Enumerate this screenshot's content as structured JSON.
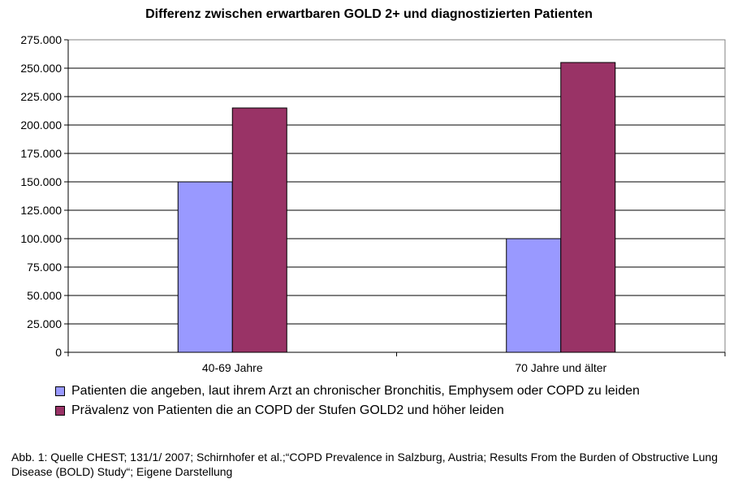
{
  "chart_data": {
    "type": "bar",
    "title": "Differenz zwischen erwartbaren GOLD 2+  und diagnostizierten Patienten",
    "categories": [
      "40-69 Jahre",
      "70 Jahre und älter"
    ],
    "series": [
      {
        "name": "Patienten die angeben, laut ihrem Arzt an chronischer Bronchitis, Emphysem oder COPD zu leiden",
        "values": [
          150000,
          100000
        ],
        "color": "#9999ff"
      },
      {
        "name": "Prävalenz von Patienten die an COPD der Stufen GOLD2 und höher leiden",
        "values": [
          215000,
          255000
        ],
        "color": "#993366"
      }
    ],
    "ylim": [
      0,
      275000
    ],
    "yticks": [
      "0",
      "25.000",
      "50.000",
      "75.000",
      "100.000",
      "125.000",
      "150.000",
      "175.000",
      "200.000",
      "225.000",
      "250.000",
      "275.000"
    ],
    "ytick_values": [
      0,
      25000,
      50000,
      75000,
      100000,
      125000,
      150000,
      175000,
      200000,
      225000,
      250000,
      275000
    ],
    "grid": true,
    "legend_position": "bottom-left"
  },
  "caption": "Abb. 1: Quelle CHEST; 131/1/ 2007; Schirnhofer et al.;“COPD Prevalence in Salzburg, Austria; Results From the Burden of Obstructive Lung Disease (BOLD) Study“; Eigene Darstellung"
}
